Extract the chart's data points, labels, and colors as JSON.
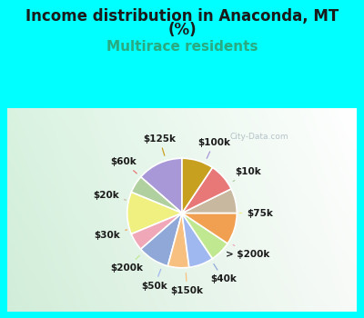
{
  "title_line1": "Income distribution in Anaconda, MT",
  "title_line2": "(%)",
  "subtitle": "Multirace residents",
  "labels": [
    "$100k",
    "$10k",
    "$75k",
    "> $200k",
    "$40k",
    "$150k",
    "$50k",
    "$200k",
    "$30k",
    "$20k",
    "$60k",
    "$125k"
  ],
  "values": [
    13,
    5,
    12,
    5,
    9,
    6,
    7,
    6,
    9,
    7,
    8,
    9
  ],
  "colors": [
    "#a898d8",
    "#b0d0a0",
    "#f0f080",
    "#f0a8b8",
    "#90a8d8",
    "#f8c080",
    "#a0b8f0",
    "#c0e890",
    "#f0a050",
    "#c8b8a0",
    "#e87878",
    "#c8a020"
  ],
  "background_color": "#00ffff",
  "watermark": "City-Data.com",
  "title_fontsize": 12,
  "subtitle_fontsize": 11,
  "label_fontsize": 7.5
}
